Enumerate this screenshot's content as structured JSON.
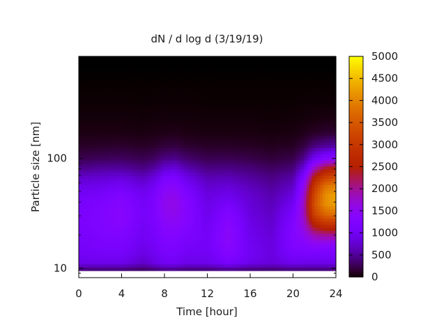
{
  "chart_data": {
    "type": "heatmap",
    "title": "dN / d log d (3/19/19)",
    "xlabel": "Time [hour]",
    "ylabel": "Particle size [nm]",
    "xlim": [
      0,
      24
    ],
    "ylim": [
      8.2,
      850
    ],
    "yscale": "log",
    "x_ticks": [
      0,
      4,
      8,
      12,
      16,
      20,
      24
    ],
    "y_major_ticks": [
      10,
      100
    ],
    "colorbar": {
      "range": [
        0,
        5000
      ],
      "ticks": [
        0,
        500,
        1000,
        1500,
        2000,
        2500,
        3000,
        3500,
        4000,
        4500,
        5000
      ],
      "palette": "black-purple-red-yellow"
    },
    "size_bins_nm": [
      9.5,
      11,
      13,
      16,
      20,
      25,
      31,
      38,
      46,
      56,
      68,
      82,
      100,
      130,
      170,
      230,
      320,
      450,
      650,
      850
    ],
    "times_hour": [
      0,
      2,
      4,
      6,
      7,
      8,
      9,
      10,
      12,
      14,
      16,
      18,
      20,
      21,
      22,
      23,
      24
    ],
    "values_note": "",
    "values": [
      [
        300,
        900,
        1000,
        1050,
        1100,
        1150,
        1150,
        1100,
        1050,
        900,
        700,
        450,
        250,
        120,
        60,
        30,
        15,
        5,
        0,
        0
      ],
      [
        300,
        900,
        1050,
        1150,
        1200,
        1250,
        1250,
        1200,
        1100,
        950,
        750,
        500,
        280,
        130,
        60,
        30,
        15,
        5,
        0,
        0
      ],
      [
        300,
        900,
        1050,
        1150,
        1250,
        1350,
        1400,
        1350,
        1250,
        1050,
        800,
        520,
        300,
        140,
        60,
        30,
        15,
        5,
        0,
        0
      ],
      [
        250,
        700,
        850,
        950,
        1000,
        1050,
        1100,
        1050,
        1000,
        850,
        650,
        420,
        250,
        120,
        50,
        25,
        10,
        5,
        0,
        0
      ],
      [
        300,
        850,
        950,
        1050,
        1100,
        1150,
        1200,
        1200,
        1150,
        1000,
        800,
        520,
        300,
        140,
        60,
        30,
        15,
        5,
        0,
        0
      ],
      [
        350,
        1000,
        1100,
        1200,
        1300,
        1400,
        1500,
        1550,
        1500,
        1350,
        1100,
        750,
        420,
        180,
        70,
        30,
        15,
        5,
        0,
        0
      ],
      [
        350,
        1000,
        1100,
        1200,
        1300,
        1450,
        1550,
        1600,
        1550,
        1400,
        1150,
        800,
        450,
        200,
        80,
        30,
        15,
        5,
        0,
        0
      ],
      [
        300,
        900,
        1000,
        1100,
        1200,
        1300,
        1350,
        1350,
        1250,
        1100,
        900,
        600,
        350,
        150,
        60,
        30,
        15,
        5,
        0,
        0
      ],
      [
        300,
        900,
        1000,
        1050,
        1050,
        1000,
        950,
        900,
        850,
        750,
        600,
        420,
        250,
        120,
        50,
        25,
        10,
        5,
        0,
        0
      ],
      [
        350,
        1100,
        1300,
        1400,
        1450,
        1400,
        1300,
        1100,
        950,
        800,
        620,
        430,
        260,
        120,
        50,
        25,
        10,
        5,
        0,
        0
      ],
      [
        300,
        900,
        1000,
        1000,
        950,
        900,
        850,
        800,
        750,
        650,
        520,
        380,
        230,
        110,
        50,
        25,
        10,
        5,
        0,
        0
      ],
      [
        300,
        800,
        850,
        850,
        800,
        750,
        700,
        650,
        600,
        520,
        420,
        300,
        180,
        90,
        40,
        20,
        10,
        5,
        0,
        0
      ],
      [
        300,
        950,
        1100,
        1250,
        1300,
        1250,
        1150,
        1000,
        850,
        700,
        550,
        380,
        230,
        110,
        50,
        25,
        10,
        5,
        0,
        0
      ],
      [
        300,
        900,
        1100,
        1300,
        1500,
        1700,
        1800,
        1800,
        1700,
        1500,
        1200,
        800,
        450,
        200,
        80,
        30,
        15,
        5,
        0,
        0
      ],
      [
        300,
        900,
        1100,
        1400,
        1900,
        2600,
        3200,
        3400,
        3300,
        3000,
        2500,
        1800,
        1000,
        400,
        120,
        40,
        15,
        5,
        0,
        0
      ],
      [
        300,
        900,
        1100,
        1400,
        2000,
        2900,
        3700,
        4100,
        4100,
        3800,
        3100,
        2300,
        1300,
        500,
        150,
        50,
        15,
        5,
        0,
        0
      ],
      [
        300,
        900,
        1100,
        1400,
        2000,
        2900,
        3800,
        4300,
        4300,
        4000,
        3300,
        2500,
        1400,
        550,
        160,
        50,
        15,
        5,
        0,
        0
      ]
    ]
  }
}
